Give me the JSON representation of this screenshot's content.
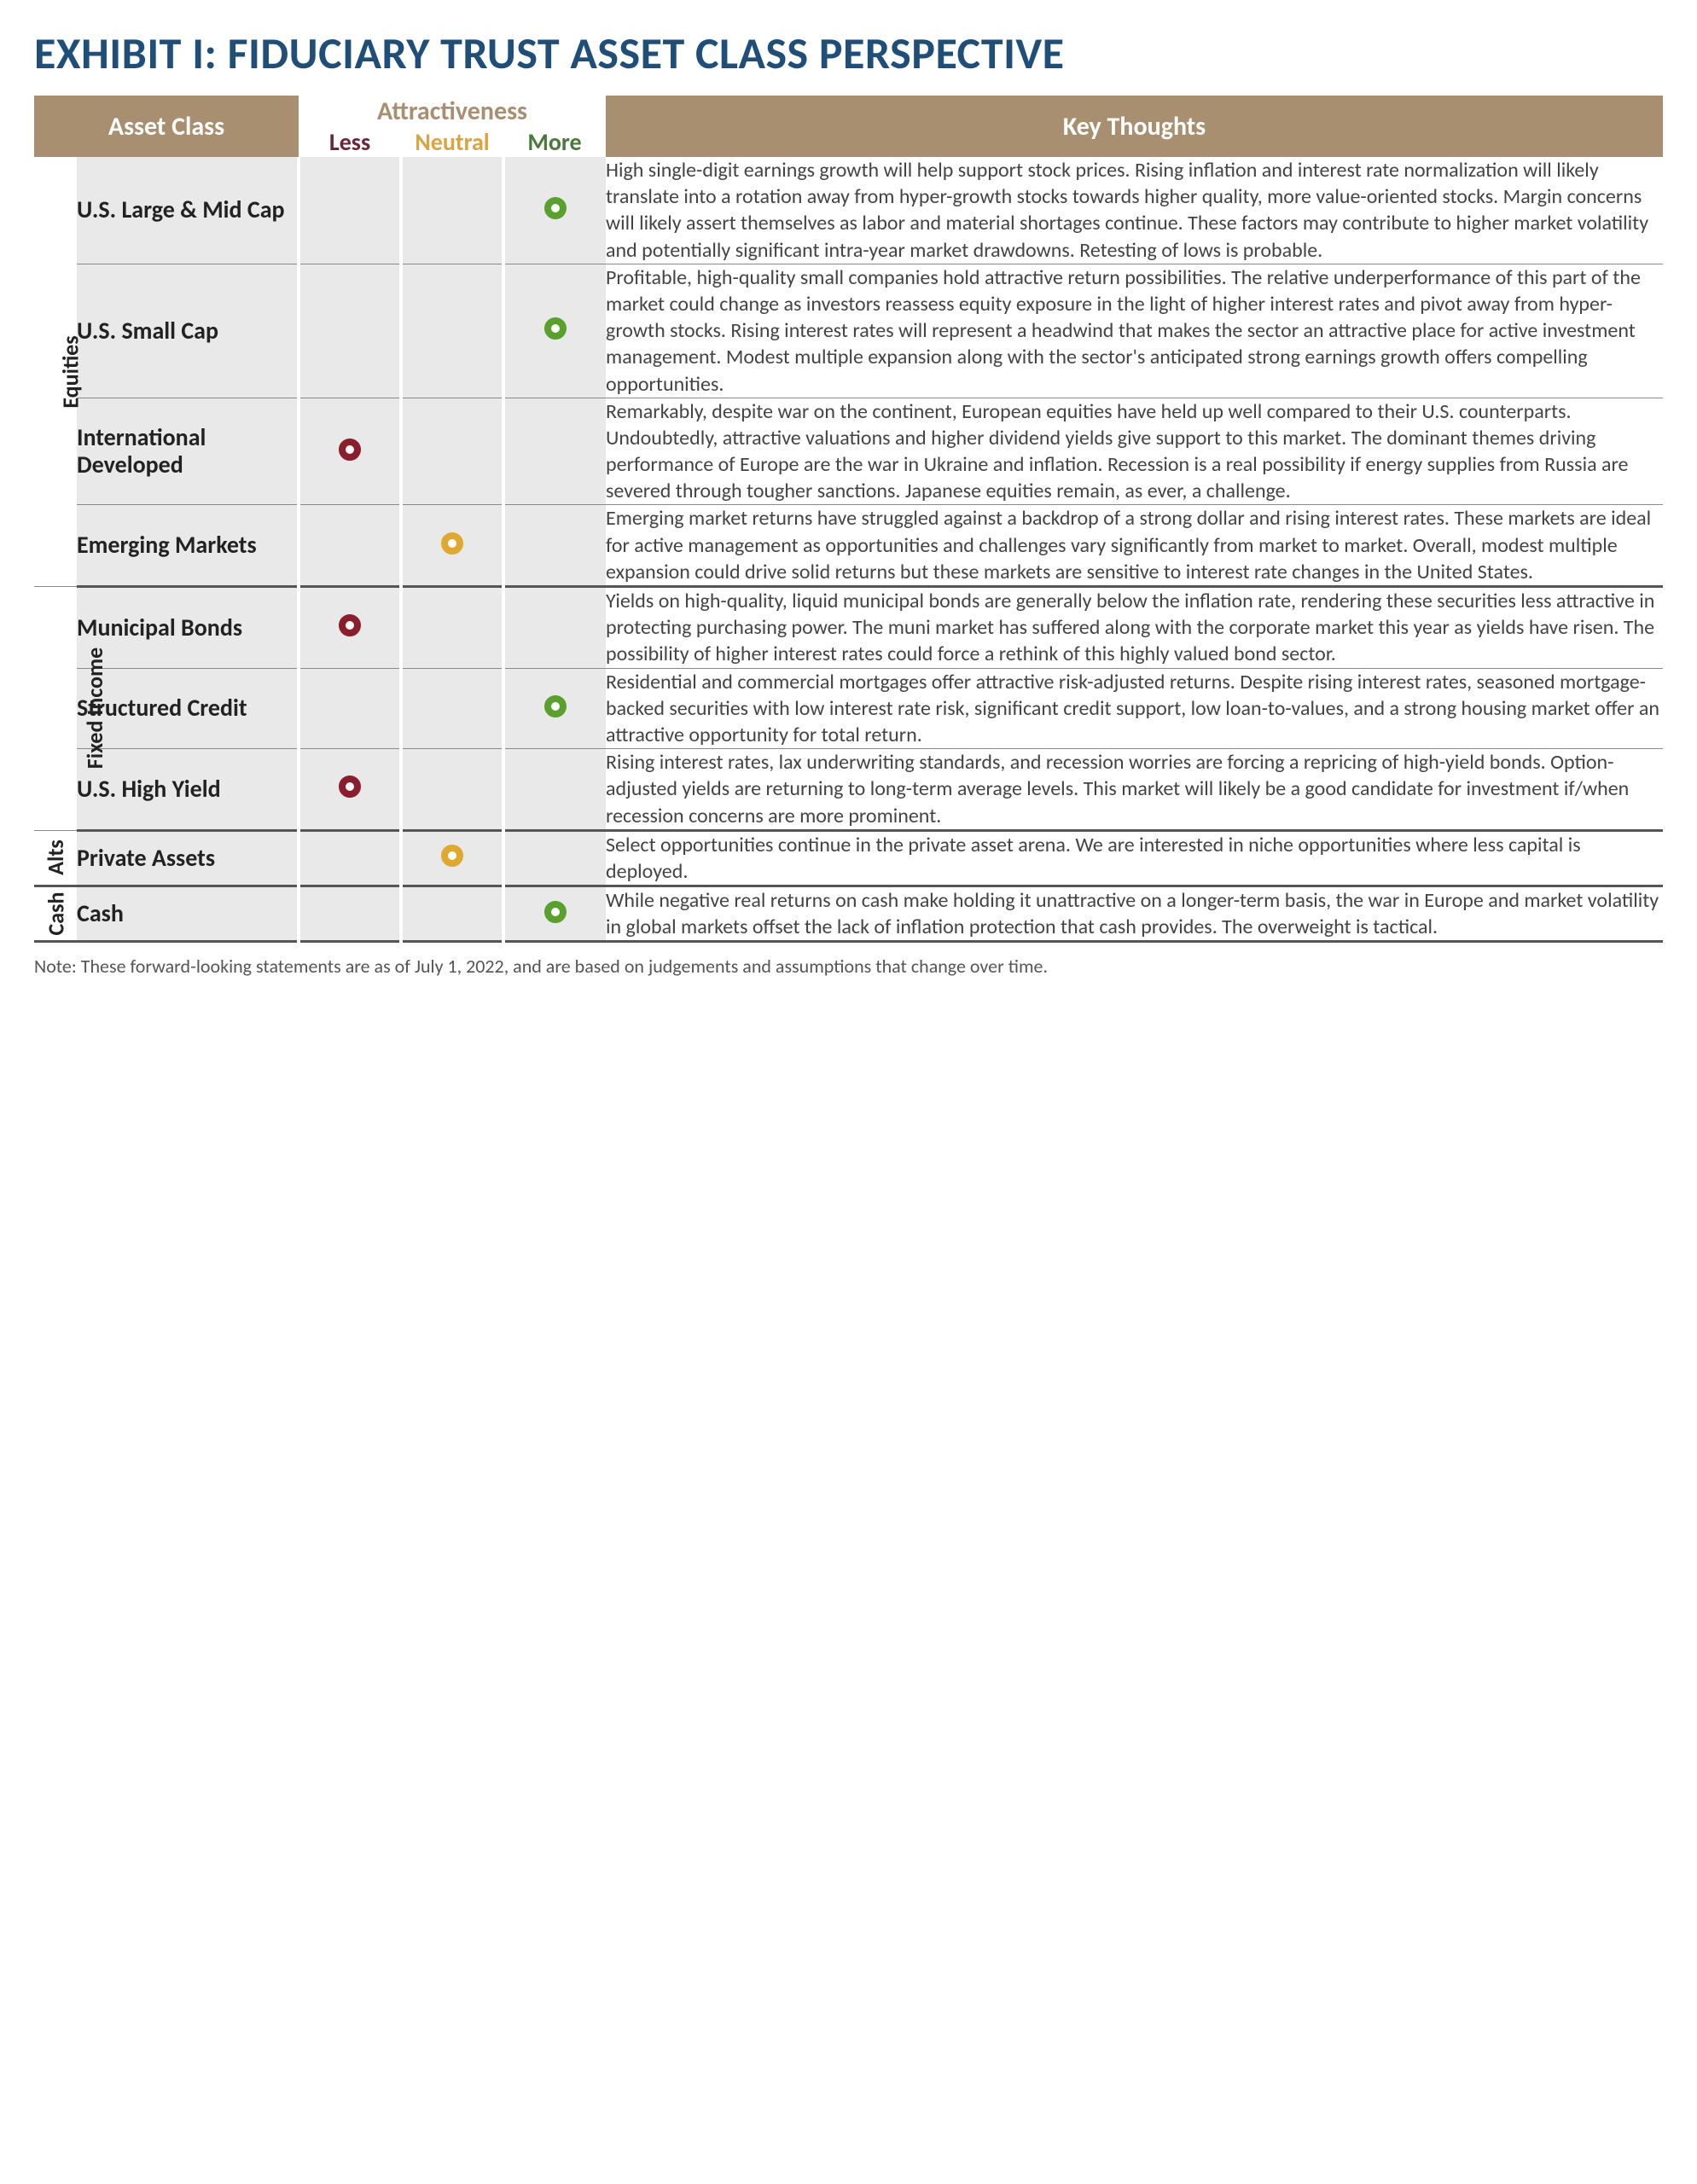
{
  "title": "EXHIBIT I: FIDUCIARY TRUST ASSET CLASS PERSPECTIVE",
  "headers": {
    "asset_class": "Asset Class",
    "attractiveness": "Attractiveness",
    "less": "Less",
    "neutral": "Neutral",
    "more": "More",
    "key_thoughts": "Key Thoughts"
  },
  "colors": {
    "title": "#1f4e79",
    "header_bg": "#a88f6f",
    "header_fg": "#ffffff",
    "less": "#8b1e2d",
    "neutral": "#e0a82e",
    "more": "#5aa02c",
    "shade": "#e9e9e9",
    "rule_thin": "#8a8a8a",
    "rule_thick": "#555555"
  },
  "sections": [
    {
      "label": "Equities",
      "rows": [
        {
          "name": "U.S. Large & Mid Cap",
          "rating": "more",
          "thoughts": "High single-digit earnings growth will help support stock prices. Rising inflation and interest rate normalization will likely translate into a rotation away from hyper-growth stocks towards higher quality, more value-oriented stocks. Margin concerns will likely assert themselves as labor and material shortages continue. These factors may contribute to higher market volatility and potentially significant intra-year market drawdowns. Retesting of lows is probable."
        },
        {
          "name": "U.S. Small Cap",
          "rating": "more",
          "thoughts": "Profitable, high-quality small companies hold attractive return possibilities. The relative underperformance of this part of the market could change as investors reassess equity exposure in the light of higher interest rates and pivot away from hyper-growth stocks.  Rising interest rates will represent a headwind that makes the sector an attractive place for active investment management. Modest multiple expansion along with the sector's anticipated strong earnings growth offers compelling opportunities."
        },
        {
          "name": "International Developed",
          "rating": "less",
          "thoughts": "Remarkably, despite war on the continent, European equities have held up well compared to their U.S. counterparts. Undoubtedly, attractive valuations and higher dividend yields give support to this market. The dominant themes driving performance of Europe are the war in Ukraine and inflation. Recession is a real possibility if energy supplies from Russia are severed through tougher sanctions. Japanese equities remain, as ever, a challenge."
        },
        {
          "name": "Emerging Markets",
          "rating": "neutral",
          "thoughts": "Emerging market returns have struggled against a backdrop of a strong dollar and rising interest rates. These markets are ideal for active management as opportunities and challenges vary significantly from market to market. Overall, modest multiple expansion could drive solid returns but these markets are sensitive to interest rate changes in the United States."
        }
      ]
    },
    {
      "label": "Fixed Income",
      "rows": [
        {
          "name": "Municipal Bonds",
          "rating": "less",
          "thoughts": "Yields on high-quality, liquid municipal bonds are generally below the inflation rate, rendering these securities less attractive in protecting purchasing power. The muni market has suffered along with the corporate market this year as yields have risen. The possibility of higher interest rates could force a rethink of this highly valued bond sector."
        },
        {
          "name": "Structured Credit",
          "rating": "more",
          "thoughts": "Residential and commercial mortgages offer attractive risk-adjusted returns. Despite rising interest rates, seasoned mortgage-backed securities with low interest rate risk, significant credit support, low loan-to-values, and a strong housing market offer an attractive opportunity for total return."
        },
        {
          "name": "U.S. High Yield",
          "rating": "less",
          "thoughts": "Rising interest rates, lax underwriting standards, and recession worries are forcing a repricing of high-yield bonds. Option-adjusted yields are returning to long-term average levels. This market will likely be a good candidate for investment if/when recession concerns are more prominent."
        }
      ]
    },
    {
      "label": "Alts",
      "rows": [
        {
          "name": "Private Assets",
          "rating": "neutral",
          "thoughts": "Select opportunities continue in the private asset arena. We are interested in niche opportunities where less capital is deployed."
        }
      ]
    },
    {
      "label": "Cash",
      "rows": [
        {
          "name": "Cash",
          "rating": "more",
          "thoughts": "While negative real returns on cash make holding it unattractive on a longer-term basis, the war in Europe and market volatility in global markets offset the lack of inflation protection that cash provides. The overweight is tactical."
        }
      ]
    }
  ],
  "footnote": "Note: These forward-looking statements are as of July 1, 2022, and are based on judgements and assumptions that change over time."
}
